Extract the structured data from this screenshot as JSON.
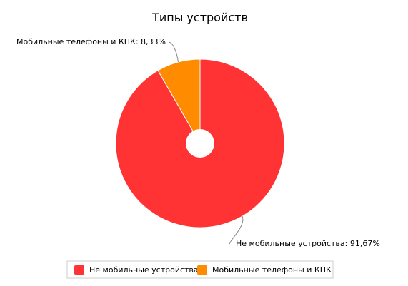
{
  "chart_data": {
    "type": "pie",
    "title": "Типы устройств",
    "slices": [
      {
        "label": "Не мобильные устройства",
        "value": 91.67,
        "value_text": "91,67%",
        "color": "#ff3333"
      },
      {
        "label": "Мобильные телефоны и КПК",
        "value": 8.33,
        "value_text": "8,33%",
        "color": "#ff8c00"
      }
    ],
    "legend_position": "bottom"
  }
}
